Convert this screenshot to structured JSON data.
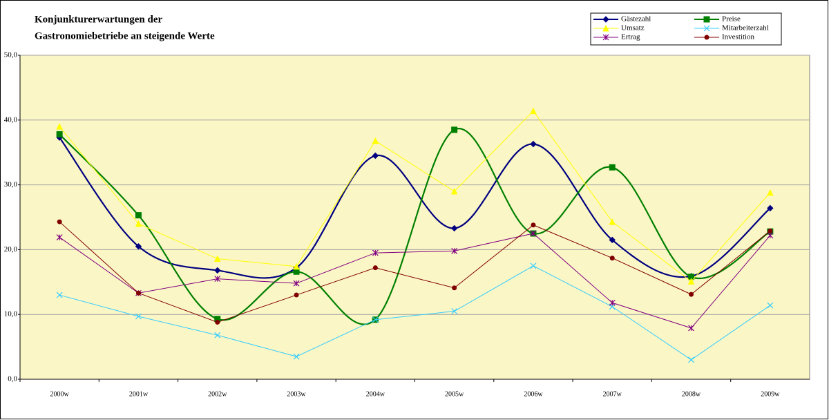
{
  "chart_data": {
    "type": "line",
    "title": [
      "Konjunkturerwartungen der",
      "Gastronomiebetriebe an steigende Werte"
    ],
    "categories": [
      "2000w",
      "2001w",
      "2002w",
      "2003w",
      "2004w",
      "2005w",
      "2006w",
      "2007w",
      "2008w",
      "2009w"
    ],
    "series": [
      {
        "name": "Gästezahl",
        "color": "#000080",
        "marker": "diamond",
        "smooth": true,
        "values": [
          37.3,
          20.5,
          16.8,
          17.2,
          34.5,
          23.3,
          36.3,
          21.5,
          15.9,
          26.4
        ]
      },
      {
        "name": "Preise",
        "color": "#008000",
        "marker": "square",
        "smooth": true,
        "values": [
          37.8,
          25.3,
          9.3,
          16.6,
          9.2,
          38.5,
          22.5,
          32.7,
          15.8,
          22.8
        ]
      },
      {
        "name": "Umsatz",
        "color": "#ffff00",
        "marker": "triangle",
        "smooth": false,
        "values": [
          39.0,
          24.0,
          18.6,
          17.4,
          36.8,
          29.0,
          41.4,
          24.3,
          15.1,
          28.8
        ]
      },
      {
        "name": "Mitarbeiterzahl",
        "color": "#33ccff",
        "marker": "x",
        "smooth": false,
        "values": [
          13.0,
          9.7,
          6.8,
          3.5,
          9.2,
          10.5,
          17.5,
          11.2,
          3.0,
          11.4
        ]
      },
      {
        "name": "Ertrag",
        "color": "#800080",
        "marker": "star",
        "smooth": false,
        "values": [
          21.9,
          13.3,
          15.5,
          14.8,
          19.5,
          19.8,
          22.5,
          11.8,
          7.9,
          22.2
        ]
      },
      {
        "name": "Investition",
        "color": "#800000",
        "marker": "circle",
        "smooth": false,
        "values": [
          24.3,
          13.3,
          8.8,
          13.0,
          17.2,
          14.1,
          23.8,
          18.7,
          13.1,
          22.9
        ]
      }
    ],
    "ylim": [
      0,
      50
    ],
    "yticks": [
      {
        "value": 0,
        "label": "0,0"
      },
      {
        "value": 10,
        "label": "10,0"
      },
      {
        "value": 20,
        "label": "20,0"
      },
      {
        "value": 30,
        "label": "30,0"
      },
      {
        "value": 40,
        "label": "40,0"
      },
      {
        "value": 50,
        "label": "50,0"
      }
    ],
    "grid": true,
    "legend": "top-right",
    "plot_background": "#fbf6c6"
  }
}
